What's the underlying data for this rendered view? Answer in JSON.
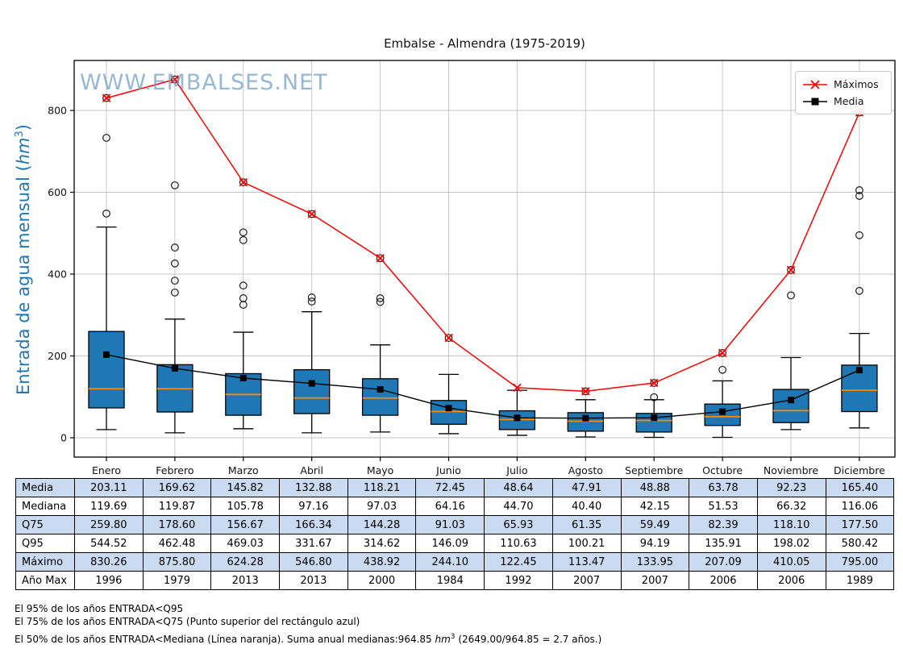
{
  "title": "Embalse - Almendra (1975-2019)",
  "watermark": "WWW.EMBALSES.NET",
  "y_axis": {
    "label_prefix": "Entrada de agua mensual (",
    "label_unit": "hm",
    "label_exp": "3",
    "label_suffix": ")",
    "ticks": [
      0,
      200,
      400,
      600,
      800
    ]
  },
  "legend": {
    "maximos": "Máximos",
    "media": "Media"
  },
  "chart_data": {
    "type": "boxplot",
    "title": "Embalse - Almendra (1975-2019)",
    "xlabel": "",
    "ylabel": "Entrada de agua mensual (hm3)",
    "ylim": [
      -47,
      922
    ],
    "yticks": [
      0,
      200,
      400,
      600,
      800
    ],
    "grid": true,
    "legend_position": "upper right",
    "categories": [
      "Enero",
      "Febrero",
      "Marzo",
      "Abril",
      "Mayo",
      "Junio",
      "Julio",
      "Agosto",
      "Septiembre",
      "Octubre",
      "Noviembre",
      "Diciembre"
    ],
    "series": [
      {
        "name": "Máximos",
        "type": "line",
        "color": "#ff0000",
        "marker": "x",
        "values": [
          830.26,
          875.8,
          624.28,
          546.8,
          438.92,
          244.1,
          122.45,
          113.47,
          133.95,
          207.09,
          410.05,
          795.0
        ]
      },
      {
        "name": "Media",
        "type": "line",
        "color": "#000000",
        "marker": "square",
        "values": [
          203.11,
          169.62,
          145.82,
          132.88,
          118.21,
          72.45,
          48.64,
          47.91,
          48.88,
          63.78,
          92.23,
          165.4
        ]
      }
    ],
    "boxes": {
      "median": [
        119.69,
        119.87,
        105.78,
        97.16,
        97.03,
        64.16,
        44.7,
        40.4,
        42.15,
        51.53,
        66.32,
        116.06
      ],
      "q25": [
        73,
        63,
        55,
        59,
        55,
        33,
        20,
        16,
        14,
        30,
        37,
        64
      ],
      "q75": [
        259.8,
        178.6,
        156.67,
        166.34,
        144.28,
        91.03,
        65.93,
        61.35,
        59.49,
        82.39,
        118.1,
        177.5
      ],
      "whisker_low": [
        20,
        12,
        22,
        12,
        14,
        10,
        6,
        2,
        1,
        1,
        20,
        24
      ],
      "whisker_high": [
        515,
        290,
        258,
        308,
        227,
        155,
        116,
        93,
        93,
        139,
        196,
        255
      ],
      "outliers": [
        [
          548,
          733,
          830.26
        ],
        [
          355,
          384,
          426,
          465,
          617,
          875.8
        ],
        [
          325,
          341,
          372,
          483,
          502,
          624.28
        ],
        [
          333,
          343,
          546.8
        ],
        [
          332,
          341,
          438.92
        ],
        [
          244.1
        ],
        [],
        [
          113.47
        ],
        [
          99,
          133.95
        ],
        [
          166,
          207.09
        ],
        [
          348,
          410.05
        ],
        [
          359,
          495,
          591,
          605,
          795.0
        ]
      ]
    },
    "colors": {
      "box_fill": "#1f77b4",
      "box_edge": "#000000",
      "median_line": "#ff8c00",
      "max_line": "#ff0000",
      "mean_line": "#000000",
      "grid": "#c4c4c4",
      "watermark": "#6f9ec4",
      "ylabel": "#1f77b4"
    }
  },
  "table": {
    "row_labels": [
      "Media",
      "Mediana",
      "Q75",
      "Q95",
      "Máximo",
      "Año Max"
    ],
    "rows": [
      [
        "203.11",
        "169.62",
        "145.82",
        "132.88",
        "118.21",
        "72.45",
        "48.64",
        "47.91",
        "48.88",
        "63.78",
        "92.23",
        "165.40"
      ],
      [
        "119.69",
        "119.87",
        "105.78",
        "97.16",
        "97.03",
        "64.16",
        "44.70",
        "40.40",
        "42.15",
        "51.53",
        "66.32",
        "116.06"
      ],
      [
        "259.80",
        "178.60",
        "156.67",
        "166.34",
        "144.28",
        "91.03",
        "65.93",
        "61.35",
        "59.49",
        "82.39",
        "118.10",
        "177.50"
      ],
      [
        "544.52",
        "462.48",
        "469.03",
        "331.67",
        "314.62",
        "146.09",
        "110.63",
        "100.21",
        "94.19",
        "135.91",
        "198.02",
        "580.42"
      ],
      [
        "830.26",
        "875.80",
        "624.28",
        "546.80",
        "438.92",
        "244.10",
        "122.45",
        "113.47",
        "133.95",
        "207.09",
        "410.05",
        "795.00"
      ],
      [
        "1996",
        "1979",
        "2013",
        "2013",
        "2000",
        "1984",
        "1992",
        "2007",
        "2007",
        "2006",
        "2006",
        "1989"
      ]
    ],
    "highlight_color": "#c9daf1"
  },
  "footer": {
    "line1": "El 95% de los años ENTRADA<Q95",
    "line2": "El 75% de los años ENTRADA<Q75 (Punto superior del rectángulo azul)",
    "line3_pre": "El 50% de los años ENTRADA<Mediana (Línea naranja). Suma anual medianas:964.85 ",
    "line3_unit": "hm",
    "line3_exp": "3",
    "line3_post": " (2649.00/964.85 = 2.7 años.)"
  }
}
